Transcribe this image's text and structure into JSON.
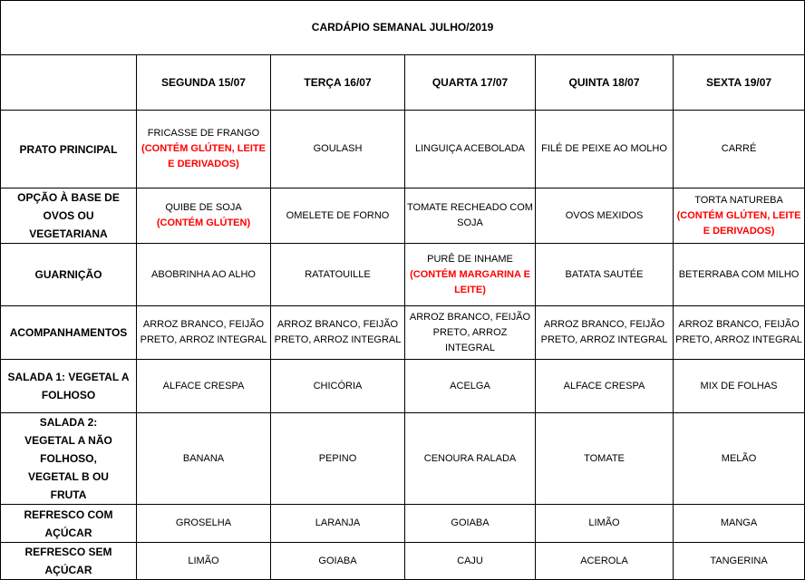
{
  "title": "CARDÁPIO SEMANAL JULHO/2019",
  "days": [
    "SEGUNDA   15/07",
    "TERÇA 16/07",
    "QUARTA 17/07",
    "QUINTA 18/07",
    "SEXTA 19/07"
  ],
  "rows": [
    {
      "label": "PRATO PRINCIPAL",
      "cells": [
        {
          "text": "FRICASSE DE FRANGO",
          "note": "(CONTÉM GLÚTEN, LEITE E DERIVADOS)"
        },
        {
          "text": "GOULASH"
        },
        {
          "text": "LINGUIÇA ACEBOLADA"
        },
        {
          "text": "FILÉ DE PEIXE AO MOLHO"
        },
        {
          "text": "CARRÉ"
        }
      ]
    },
    {
      "label": "OPÇÃO À BASE DE OVOS OU VEGETARIANA",
      "cells": [
        {
          "text": "QUIBE DE SOJA",
          "note": "(CONTÉM GLÚTEN)"
        },
        {
          "text": "OMELETE DE FORNO"
        },
        {
          "text": "TOMATE RECHEADO COM SOJA"
        },
        {
          "text": "OVOS MEXIDOS"
        },
        {
          "text": "TORTA NATUREBA",
          "note": "(CONTÉM GLÚTEN, LEITE E DERIVADOS)"
        }
      ]
    },
    {
      "label": "GUARNIÇÃO",
      "cells": [
        {
          "text": "ABOBRINHA AO ALHO"
        },
        {
          "text": "RATATOUILLE"
        },
        {
          "text": "PURÊ DE INHAME",
          "note": "(CONTÉM MARGARINA E LEITE)"
        },
        {
          "text": "BATATA SAUTÉE"
        },
        {
          "text": "BETERRABA COM  MILHO"
        }
      ]
    },
    {
      "label": "ACOMPANHAMENTOS",
      "cells": [
        {
          "text": "ARROZ BRANCO, FEIJÃO PRETO, ARROZ INTEGRAL"
        },
        {
          "text": "ARROZ BRANCO, FEIJÃO PRETO, ARROZ INTEGRAL"
        },
        {
          "text": "ARROZ BRANCO, FEIJÃO PRETO, ARROZ INTEGRAL"
        },
        {
          "text": "ARROZ BRANCO, FEIJÃO PRETO, ARROZ INTEGRAL"
        },
        {
          "text": "ARROZ BRANCO, FEIJÃO PRETO, ARROZ INTEGRAL"
        }
      ]
    },
    {
      "label": "SALADA 1: VEGETAL A FOLHOSO",
      "cells": [
        {
          "text": "ALFACE CRESPA"
        },
        {
          "text": "CHICÓRIA"
        },
        {
          "text": "ACELGA"
        },
        {
          "text": "ALFACE CRESPA"
        },
        {
          "text": "MIX DE FOLHAS"
        }
      ]
    },
    {
      "label": "SALADA 2: VEGETAL A NÃO FOLHOSO, VEGETAL B OU FRUTA",
      "cells": [
        {
          "text": "BANANA"
        },
        {
          "text": "PEPINO"
        },
        {
          "text": "CENOURA RALADA"
        },
        {
          "text": "TOMATE"
        },
        {
          "text": "MELÃO"
        }
      ]
    },
    {
      "label": "REFRESCO COM AÇÚCAR",
      "cells": [
        {
          "text": "GROSELHA"
        },
        {
          "text": "LARANJA"
        },
        {
          "text": "GOIABA"
        },
        {
          "text": "LIMÃO"
        },
        {
          "text": "MANGA"
        }
      ]
    },
    {
      "label": "REFRESCO SEM AÇÚCAR",
      "cells": [
        {
          "text": "LIMÃO"
        },
        {
          "text": "GOIABA"
        },
        {
          "text": "CAJU"
        },
        {
          "text": "ACEROLA"
        },
        {
          "text": "TANGERINA"
        }
      ]
    }
  ],
  "colors": {
    "allergen_note": "#ff0000",
    "border": "#000000"
  }
}
